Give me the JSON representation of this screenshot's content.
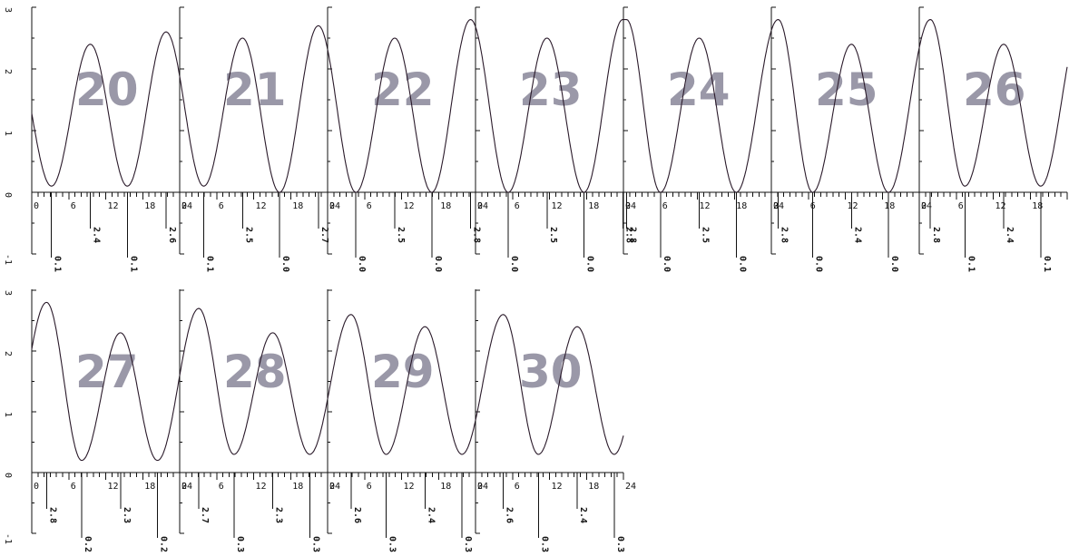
{
  "chart_data": {
    "type": "line",
    "xlim": [
      0,
      24
    ],
    "ylim": [
      -1,
      3
    ],
    "x_ticks_labeled": [
      0,
      6,
      12,
      18,
      24
    ],
    "y_ticks_labeled": [
      -1,
      0,
      1,
      2,
      3
    ],
    "grid": false,
    "panels": [
      {
        "label": "20",
        "y0": 0.9,
        "highs": [
          {
            "t": 9.5,
            "v": 2.4
          },
          {
            "t": 21.8,
            "v": 2.6
          }
        ],
        "lows": [
          {
            "t": 3.2,
            "v": 0.1
          },
          {
            "t": 15.5,
            "v": 0.1
          }
        ]
      },
      {
        "label": "21",
        "y0": 1.35,
        "highs": [
          {
            "t": 10.2,
            "v": 2.5
          },
          {
            "t": 22.5,
            "v": 2.7
          }
        ],
        "lows": [
          {
            "t": 3.9,
            "v": 0.1
          },
          {
            "t": 16.2,
            "v": 0.0
          }
        ]
      },
      {
        "label": "22",
        "y0": 1.75,
        "highs": [
          {
            "t": 10.9,
            "v": 2.5
          },
          {
            "t": 23.2,
            "v": 2.8
          }
        ],
        "lows": [
          {
            "t": 4.6,
            "v": 0.0
          },
          {
            "t": 16.9,
            "v": 0.0
          }
        ]
      },
      {
        "label": "23",
        "y0": 2.3,
        "highs": [
          {
            "t": 11.6,
            "v": 2.5
          },
          {
            "t": 23.9,
            "v": 2.8
          }
        ],
        "lows": [
          {
            "t": 5.3,
            "v": 0.0
          },
          {
            "t": 17.6,
            "v": 0.0
          }
        ]
      },
      {
        "label": "24",
        "y0": 2.8,
        "highs": [
          {
            "t": 0.5,
            "v": 2.8
          },
          {
            "t": 12.3,
            "v": 2.5
          }
        ],
        "lows": [
          {
            "t": 6.0,
            "v": 0.0
          },
          {
            "t": 18.3,
            "v": 0.0
          }
        ]
      },
      {
        "label": "25",
        "y0": 2.75,
        "highs": [
          {
            "t": 1.1,
            "v": 2.8
          },
          {
            "t": 13.0,
            "v": 2.4
          }
        ],
        "lows": [
          {
            "t": 6.7,
            "v": 0.0
          },
          {
            "t": 19.0,
            "v": 0.0
          }
        ]
      },
      {
        "label": "26",
        "y0": 2.55,
        "highs": [
          {
            "t": 1.8,
            "v": 2.8
          },
          {
            "t": 13.7,
            "v": 2.4
          }
        ],
        "lows": [
          {
            "t": 7.4,
            "v": 0.1
          },
          {
            "t": 19.7,
            "v": 0.1
          }
        ]
      },
      {
        "label": "27",
        "y0": 2.5,
        "highs": [
          {
            "t": 2.4,
            "v": 2.8
          },
          {
            "t": 14.4,
            "v": 2.3
          }
        ],
        "lows": [
          {
            "t": 8.1,
            "v": 0.2
          },
          {
            "t": 20.4,
            "v": 0.2
          }
        ]
      },
      {
        "label": "28",
        "y0": 2.3,
        "highs": [
          {
            "t": 3.1,
            "v": 2.7
          },
          {
            "t": 15.1,
            "v": 2.3
          }
        ],
        "lows": [
          {
            "t": 8.8,
            "v": 0.3
          },
          {
            "t": 21.1,
            "v": 0.3
          }
        ]
      },
      {
        "label": "29",
        "y0": 1.6,
        "highs": [
          {
            "t": 3.8,
            "v": 2.6
          },
          {
            "t": 15.8,
            "v": 2.4
          }
        ],
        "lows": [
          {
            "t": 9.5,
            "v": 0.3
          },
          {
            "t": 21.8,
            "v": 0.3
          }
        ]
      },
      {
        "label": "30",
        "y0": 1.0,
        "highs": [
          {
            "t": 4.5,
            "v": 2.6
          },
          {
            "t": 16.5,
            "v": 2.4
          }
        ],
        "lows": [
          {
            "t": 10.2,
            "v": 0.3
          },
          {
            "t": 22.5,
            "v": 0.3
          }
        ]
      }
    ]
  }
}
